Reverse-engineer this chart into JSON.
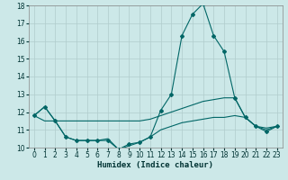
{
  "xlabel": "Humidex (Indice chaleur)",
  "ylabel": "",
  "xlim": [
    -0.5,
    23.5
  ],
  "ylim": [
    10,
    18
  ],
  "yticks": [
    10,
    11,
    12,
    13,
    14,
    15,
    16,
    17,
    18
  ],
  "xticks": [
    0,
    1,
    2,
    3,
    4,
    5,
    6,
    7,
    8,
    9,
    10,
    11,
    12,
    13,
    14,
    15,
    16,
    17,
    18,
    19,
    20,
    21,
    22,
    23
  ],
  "bg_color": "#cce8e8",
  "grid_color": "#b0cccc",
  "line_color": "#006666",
  "line1_x": [
    0,
    1,
    2,
    3,
    4,
    5,
    6,
    7,
    8,
    9,
    10,
    11,
    12,
    13,
    14,
    15,
    16,
    17,
    18,
    19,
    20,
    21,
    22,
    23
  ],
  "line1_y": [
    11.8,
    12.3,
    11.5,
    10.6,
    10.4,
    10.4,
    10.4,
    10.4,
    9.9,
    10.2,
    10.3,
    10.6,
    12.1,
    13.0,
    16.3,
    17.5,
    18.1,
    16.3,
    15.4,
    12.8,
    11.7,
    11.2,
    10.9,
    11.2
  ],
  "line2_x": [
    0,
    1,
    2,
    3,
    4,
    5,
    6,
    7,
    8,
    9,
    10,
    11,
    12,
    13,
    14,
    15,
    16,
    17,
    18,
    19,
    20,
    21,
    22,
    23
  ],
  "line2_y": [
    11.8,
    11.5,
    11.5,
    11.5,
    11.5,
    11.5,
    11.5,
    11.5,
    11.5,
    11.5,
    11.5,
    11.6,
    11.8,
    12.0,
    12.2,
    12.4,
    12.6,
    12.7,
    12.8,
    12.8,
    11.7,
    11.2,
    11.1,
    11.2
  ],
  "line3_x": [
    0,
    1,
    2,
    3,
    4,
    5,
    6,
    7,
    8,
    9,
    10,
    11,
    12,
    13,
    14,
    15,
    16,
    17,
    18,
    19,
    20,
    21,
    22,
    23
  ],
  "line3_y": [
    11.8,
    12.3,
    11.5,
    10.6,
    10.4,
    10.4,
    10.4,
    10.5,
    9.9,
    10.1,
    10.3,
    10.6,
    11.0,
    11.2,
    11.4,
    11.5,
    11.6,
    11.7,
    11.7,
    11.8,
    11.7,
    11.2,
    11.0,
    11.2
  ],
  "marker_style": "D",
  "marker_size": 2.0,
  "linewidth": 0.8,
  "tick_fontsize": 5.5,
  "xlabel_fontsize": 6.5,
  "xlabel_fontweight": "bold"
}
